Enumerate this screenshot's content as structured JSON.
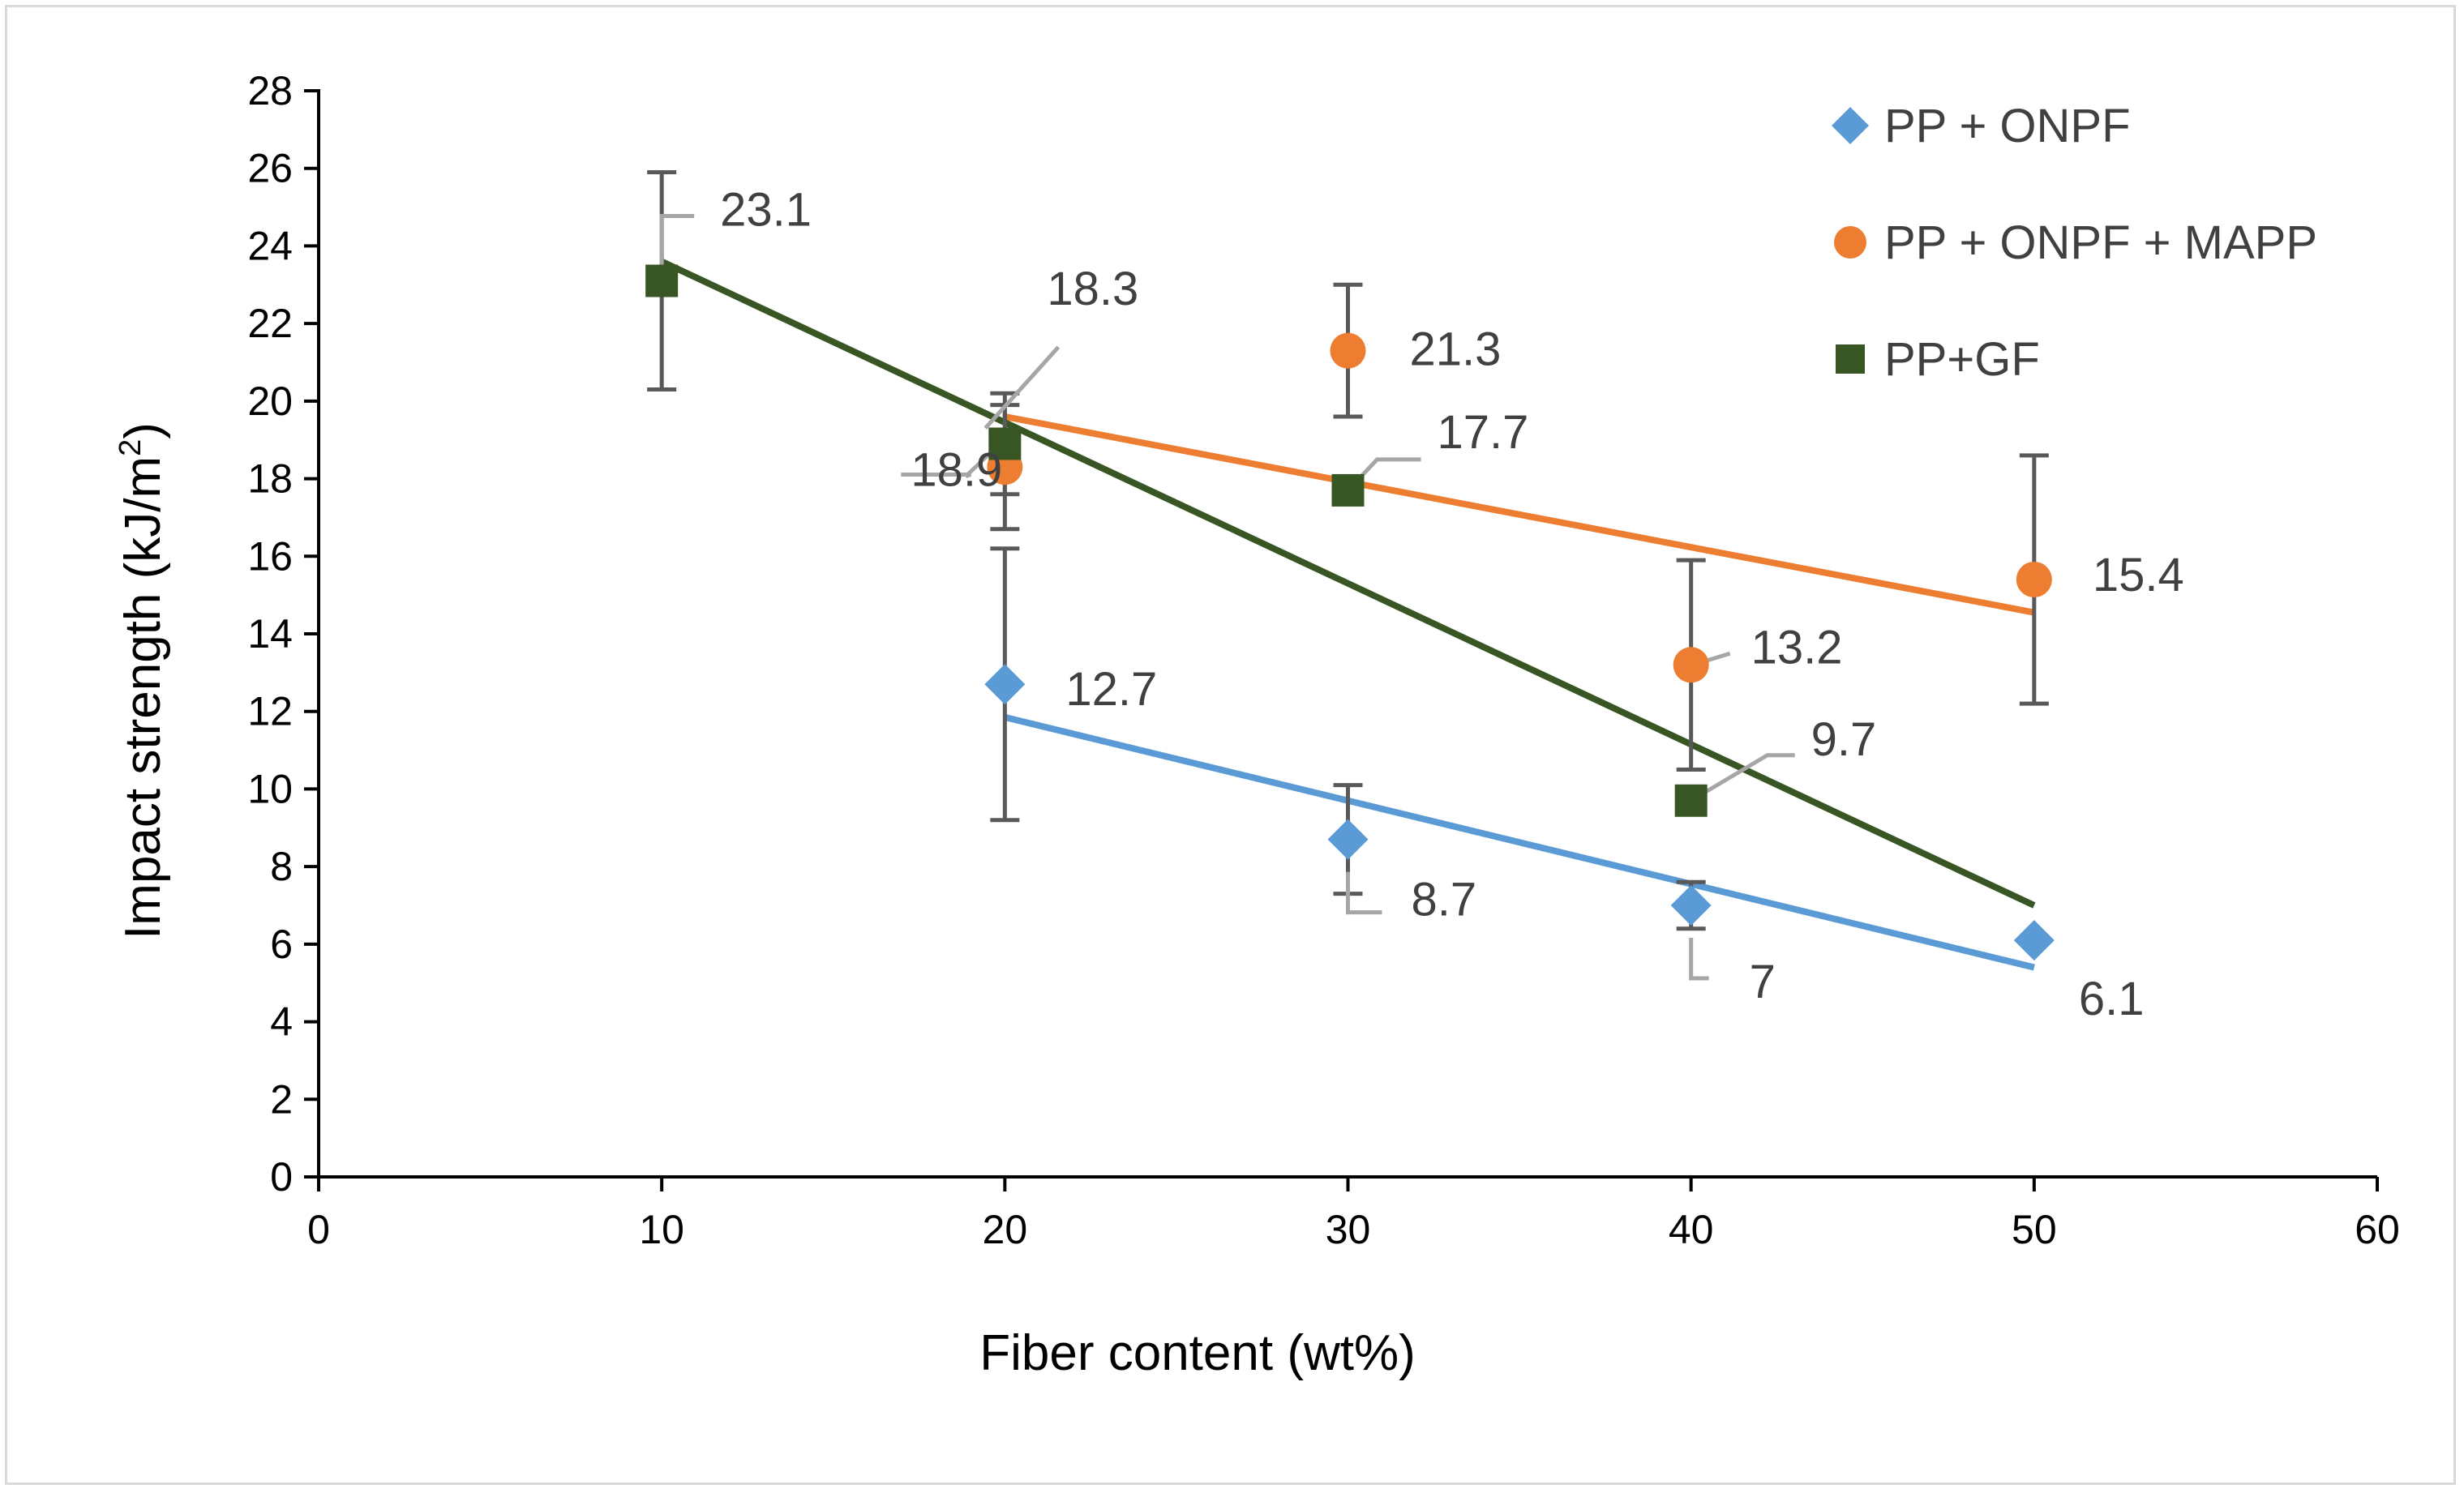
{
  "chart_data": {
    "type": "scatter",
    "title": "",
    "xlabel": "Fiber content (wt%)",
    "ylabel": "Impact strength (kJ/m",
    "ylabel_sup": "2",
    "ylabel_end": ")",
    "xlim": [
      0,
      60
    ],
    "ylim": [
      0,
      28
    ],
    "xticks": [
      0,
      10,
      20,
      30,
      40,
      50,
      60
    ],
    "yticks": [
      0,
      2,
      4,
      6,
      8,
      10,
      12,
      14,
      16,
      18,
      20,
      22,
      24,
      26,
      28
    ],
    "grid": false,
    "legend_position": "top-right",
    "series": [
      {
        "name": "PP + ONPF",
        "marker": "diamond",
        "color": "#5b9bd5",
        "x": [
          20,
          30,
          40,
          50
        ],
        "y": [
          12.7,
          8.7,
          7.0,
          6.1
        ],
        "err": [
          3.5,
          1.4,
          0.6,
          0.0
        ],
        "labels": [
          "12.7",
          "8.7",
          "7",
          "6.1"
        ],
        "trendline": {
          "x": [
            20,
            50
          ],
          "y": [
            11.85,
            5.4
          ]
        }
      },
      {
        "name": "PP + ONPF + MAPP",
        "marker": "circle",
        "color": "#ed7d31",
        "x": [
          20,
          30,
          40,
          50
        ],
        "y": [
          18.3,
          21.3,
          13.2,
          15.4
        ],
        "err": [
          1.6,
          1.7,
          2.7,
          3.2
        ],
        "labels": [
          "18.3",
          "21.3",
          "13.2",
          "15.4"
        ],
        "trendline": {
          "x": [
            20,
            50
          ],
          "y": [
            19.6,
            14.55
          ]
        }
      },
      {
        "name": "PP+GF",
        "marker": "square",
        "color": "#375623",
        "x": [
          10,
          20,
          30,
          40
        ],
        "y": [
          23.1,
          18.9,
          17.7,
          9.7
        ],
        "err": [
          2.8,
          1.3,
          0.0,
          0.0
        ],
        "labels": [
          "23.1",
          "18.9",
          "17.7",
          "9.7"
        ],
        "trendline": {
          "x": [
            10,
            50
          ],
          "y": [
            23.6,
            7.0
          ]
        }
      }
    ]
  }
}
